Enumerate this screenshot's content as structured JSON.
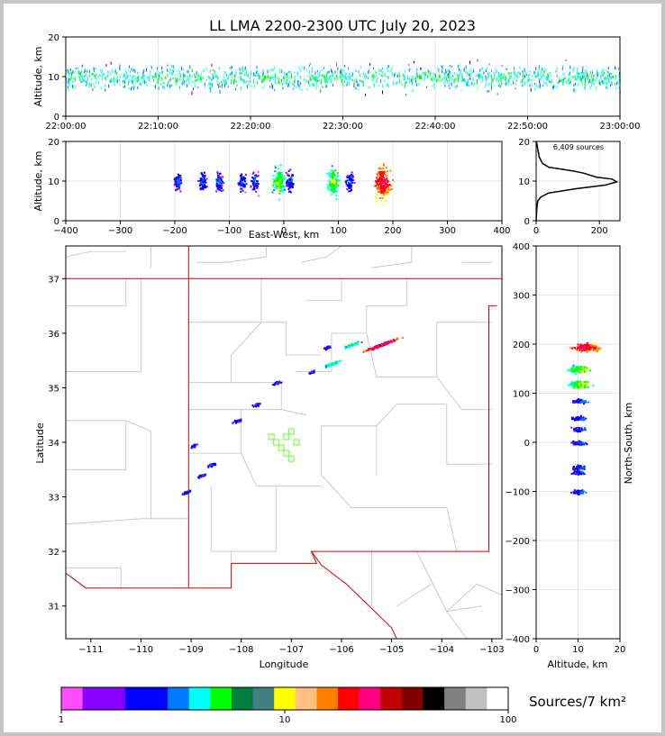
{
  "chart_data": [
    {
      "type": "scatter",
      "panel": "altitude-time",
      "title": "LL LMA 2200-2300 UTC July 20, 2023",
      "ylabel": "Altitude, km",
      "xlabel": "",
      "x_ticks": [
        "22:00:00",
        "22:10:00",
        "22:20:00",
        "22:30:00",
        "22:40:00",
        "22:50:00",
        "23:00:00"
      ],
      "y_ticks": [
        "0",
        "10",
        "20"
      ],
      "xlim": [
        "22:00:00",
        "23:00:00"
      ],
      "ylim": [
        0,
        20
      ],
      "grid": true
    },
    {
      "type": "scatter",
      "panel": "east-west-altitude",
      "xlabel": "East-West, km",
      "ylabel": "Altitude, km",
      "x_ticks": [
        "−400",
        "−300",
        "−200",
        "−100",
        "0",
        "100",
        "200",
        "300",
        "400"
      ],
      "y_ticks": [
        "0",
        "10",
        "20"
      ],
      "xlim": [
        -400,
        400
      ],
      "ylim": [
        0,
        20
      ],
      "clusters_km": [
        -195,
        -150,
        -120,
        -78,
        -55,
        -10,
        10,
        90,
        120,
        180
      ],
      "grid": true
    },
    {
      "type": "line",
      "panel": "altitude-histogram",
      "annotation": "6,409 sources",
      "x_ticks": [
        "0",
        "200"
      ],
      "y_ticks": [
        "0",
        "10",
        "20"
      ],
      "xlim": [
        0,
        265
      ],
      "ylim": [
        0,
        20
      ],
      "points": [
        [
          0,
          0
        ],
        [
          2,
          3
        ],
        [
          5,
          5
        ],
        [
          15,
          6
        ],
        [
          40,
          7
        ],
        [
          120,
          8
        ],
        [
          220,
          9
        ],
        [
          255,
          9.8
        ],
        [
          240,
          10.5
        ],
        [
          190,
          11
        ],
        [
          150,
          12
        ],
        [
          120,
          12.5
        ],
        [
          80,
          13
        ],
        [
          40,
          13.5
        ],
        [
          20,
          14.5
        ],
        [
          10,
          16
        ],
        [
          5,
          18
        ],
        [
          2,
          19.5
        ],
        [
          0,
          20
        ]
      ]
    },
    {
      "type": "scatter",
      "panel": "plan-view-map",
      "xlabel": "Longitude",
      "ylabel": "Latitude",
      "x_ticks": [
        "−111",
        "−110",
        "−109",
        "−108",
        "−107",
        "−106",
        "−105",
        "−104",
        "−103"
      ],
      "y_ticks": [
        "31",
        "32",
        "33",
        "34",
        "35",
        "36",
        "37"
      ],
      "xlim": [
        -111.5,
        -102.8
      ],
      "ylim": [
        30.4,
        37.6
      ],
      "station_markers": [
        [
          -107.1,
          34.1
        ],
        [
          -107.3,
          34.0
        ],
        [
          -107.0,
          34.2
        ],
        [
          -107.2,
          33.9
        ],
        [
          -106.9,
          34.0
        ],
        [
          -107.1,
          33.8
        ],
        [
          -107.4,
          34.1
        ],
        [
          -107.0,
          33.7
        ]
      ],
      "clusters": [
        [
          -105.2,
          35.8
        ],
        [
          -105.8,
          35.8
        ],
        [
          -106.2,
          35.45
        ],
        [
          -106.3,
          35.75
        ],
        [
          -106.6,
          35.3
        ],
        [
          -107.3,
          35.1
        ],
        [
          -107.7,
          34.7
        ],
        [
          -108.1,
          34.4
        ],
        [
          -108.6,
          33.6
        ],
        [
          -109.1,
          33.1
        ],
        [
          -108.8,
          33.4
        ],
        [
          -108.95,
          33.95
        ]
      ]
    },
    {
      "type": "scatter",
      "panel": "north-south-altitude",
      "xlabel": "Altitude, km",
      "ylabel": "North-South, km",
      "x_ticks": [
        "0",
        "10",
        "20"
      ],
      "y_ticks": [
        "−400",
        "−300",
        "−200",
        "−100",
        "0",
        "100",
        "200",
        "300",
        "400"
      ],
      "xlim": [
        0,
        20
      ],
      "ylim": [
        -400,
        400
      ],
      "clusters_km": [
        195,
        150,
        120,
        85,
        50,
        28,
        0,
        -50,
        -60,
        -100
      ]
    }
  ],
  "colorbar": {
    "label": "Sources/7 km²",
    "ticks": [
      "1",
      "10",
      "100"
    ],
    "colors": [
      "#ff4dff",
      "#8800ff",
      "#8800ff",
      "#0000ff",
      "#0000ff",
      "#0077ff",
      "#00ffff",
      "#00ff00",
      "#008040",
      "#408080",
      "#ffff00",
      "#ffc080",
      "#ff8000",
      "#ff0000",
      "#ff0080",
      "#c00000",
      "#800000",
      "#000000",
      "#808080",
      "#c0c0c0",
      "#ffffff"
    ]
  }
}
